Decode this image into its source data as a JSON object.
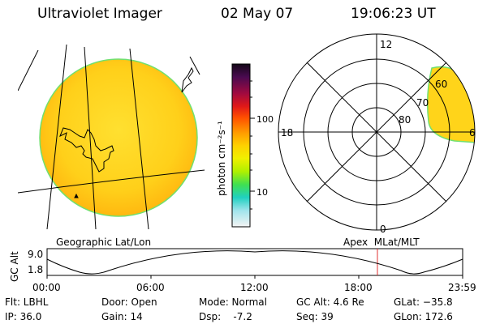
{
  "header": {
    "instrument": "Ultraviolet Imager",
    "date": "02 May 07",
    "time": "19:06:23 UT"
  },
  "colorbar": {
    "unit_label": "photon cm⁻²s⁻¹",
    "tick_high": "100",
    "tick_low": "10",
    "colors": [
      "#1a0a2a",
      "#4a0a50",
      "#8a0a50",
      "#c80a30",
      "#ff3000",
      "#ff7a00",
      "#ffb000",
      "#ffe000",
      "#c8f000",
      "#60e060",
      "#20d0c8",
      "#a0e8e8",
      "#f0f0f0"
    ]
  },
  "left_panel": {
    "projection_label": "Geographic Lat/Lon",
    "disk_color": "#ffd820"
  },
  "right_panel": {
    "projection_label": "Apex  MLat/MLT",
    "mlt_labels": {
      "top": "12",
      "left": "18",
      "bottom": "0",
      "right": "6"
    },
    "mlat_labels": [
      "60",
      "70",
      "80"
    ]
  },
  "altitude_plot": {
    "y_axis_label": "GC Alt",
    "y_ticks": [
      "9.0",
      "1.8"
    ],
    "x_ticks": [
      "00:00",
      "06:00",
      "12:00",
      "18:00",
      "23:59"
    ],
    "marker_color": "#e03030"
  },
  "info": {
    "flt": "Flt: LBHL",
    "ip": "IP: 36.0",
    "door": "Door: Open",
    "gain": "Gain: 14",
    "mode": "Mode: Normal",
    "dsp": "Dsp:    -7.2",
    "gc_alt": "GC Alt: 4.6 Re",
    "seq": "Seq: 39",
    "glat": "GLat: −35.8",
    "glon": "GLon: 172.6"
  }
}
